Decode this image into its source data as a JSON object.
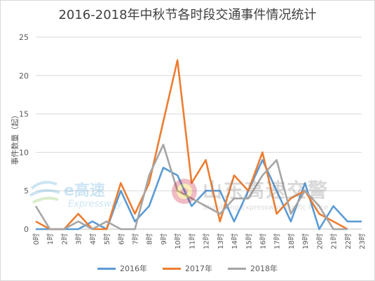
{
  "chart_data": {
    "type": "line",
    "title": "2016-2018年中秋节各时段交通事件情况统计",
    "ylabel": "事件数量（起）",
    "xlabel": "",
    "categories": [
      "0时",
      "1时",
      "2时",
      "3时",
      "4时",
      "5时",
      "6时",
      "7时",
      "8时",
      "9时",
      "10时",
      "11时",
      "12时",
      "13时",
      "14时",
      "15时",
      "16时",
      "17时",
      "18时",
      "19时",
      "20时",
      "21时",
      "22时",
      "23时"
    ],
    "ylim": [
      0,
      25
    ],
    "yticks": [
      0,
      5,
      10,
      15,
      20,
      25
    ],
    "grid": "horizontal",
    "legend_position": "bottom",
    "series": [
      {
        "name": "2016年",
        "color": "#5b9bd5",
        "values": [
          0,
          0,
          0,
          0,
          1,
          0,
          5,
          1,
          3,
          8,
          7,
          3,
          5,
          5,
          1,
          5,
          9,
          5,
          1,
          6,
          0,
          3,
          1,
          1
        ]
      },
      {
        "name": "2017年",
        "color": "#ed7d31",
        "values": [
          1,
          0,
          0,
          2,
          0,
          0,
          6,
          2,
          6,
          14,
          22,
          6,
          9,
          1,
          7,
          5,
          10,
          2,
          4,
          5,
          2,
          1,
          0,
          null
        ]
      },
      {
        "name": "2018年",
        "color": "#a5a5a5",
        "values": [
          3,
          0,
          0,
          1,
          0,
          1,
          0,
          0,
          7,
          11,
          5,
          4,
          3,
          2,
          4,
          4,
          7,
          9,
          2,
          5,
          3,
          0,
          0,
          null
        ]
      }
    ]
  },
  "watermark": {
    "logo_text": "e高速",
    "logo_subtext": "Expressway",
    "org_text": "山东高速交警",
    "org_subtext": "ShanDong Expressway Traffic Police"
  }
}
